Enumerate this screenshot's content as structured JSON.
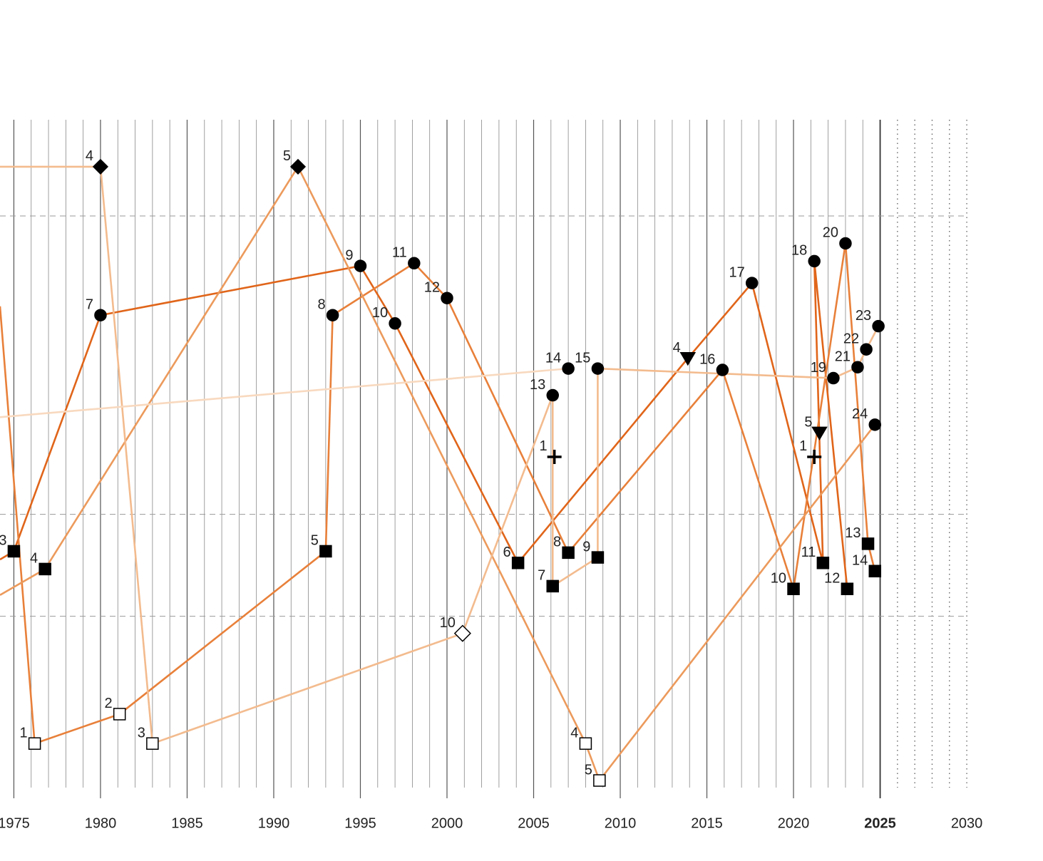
{
  "chart_data": {
    "type": "line",
    "xlim": [
      1974.2,
      2034.4
    ],
    "ylim": [
      0,
      100
    ],
    "xticks": [
      1975,
      1980,
      1985,
      1990,
      1995,
      2000,
      2005,
      2010,
      2015,
      2020,
      2025,
      2030
    ],
    "now": 2025,
    "minor_step": 1,
    "hlines": [
      85.1,
      41.5,
      26.6
    ],
    "series": [
      {
        "color": "#e0651a",
        "x": [
          1974.2,
          1975.0,
          1980.0,
          1995.0,
          1997.0,
          2004.1,
          2013.9,
          2017.6,
          2021.7,
          2021.2,
          2023.1
        ],
        "values": [
          34.9,
          36.1,
          70.6,
          77.8,
          69.4,
          34.4,
          64.3,
          75.3,
          34.4,
          78.5,
          30.6
        ],
        "markers": [
          null,
          "square",
          "circle",
          "circle",
          "circle",
          "square",
          "triangle",
          "circle",
          "square",
          "circle",
          "square"
        ],
        "point_labels": [
          null,
          3,
          7,
          9,
          10,
          6,
          4,
          17,
          11,
          18,
          12
        ]
      },
      {
        "color": "#e8803a",
        "x": [
          1974.2,
          1976.2,
          1981.1,
          1993.0,
          1993.4,
          1998.1,
          2000.0,
          2007.0,
          2015.9,
          2020.0,
          2023.0,
          2024.3,
          2024.7
        ],
        "values": [
          71.9,
          8.0,
          12.3,
          36.1,
          70.6,
          78.2,
          73.1,
          35.9,
          62.6,
          30.6,
          81.1,
          37.2,
          33.2
        ],
        "markers": [
          null,
          "open-square",
          "open-square",
          "square",
          "circle",
          "circle",
          "circle",
          "square",
          "circle",
          "square",
          "circle",
          "square",
          "square"
        ],
        "point_labels": [
          null,
          1,
          2,
          5,
          8,
          11,
          12,
          8,
          16,
          10,
          20,
          13,
          14
        ]
      },
      {
        "color": "#ec9a5c",
        "x": [
          1974.2,
          1976.8,
          1991.4,
          2008.0,
          2008.8,
          2024.7
        ],
        "values": [
          29.7,
          33.5,
          92.3,
          8.0,
          2.6,
          54.6
        ],
        "markers": [
          null,
          "square",
          "diamond",
          "open-square",
          "open-square",
          "circle"
        ],
        "point_labels": [
          null,
          4,
          5,
          4,
          5,
          24
        ]
      },
      {
        "color": "#f3bb8e",
        "x": [
          1974.2,
          1980.0,
          1983.0,
          2000.9,
          2006.1,
          2006.1,
          2008.7,
          2008.7,
          2022.3,
          2023.7,
          2024.2,
          2024.9
        ],
        "values": [
          92.3,
          92.3,
          8.0,
          24.1,
          58.9,
          31.0,
          35.2,
          62.8,
          61.4,
          63.0,
          65.6,
          69.0
        ],
        "markers": [
          null,
          "diamond",
          "open-square",
          "open-diamond",
          "circle",
          "square",
          "square",
          "circle",
          "circle",
          "circle",
          "circle",
          "circle"
        ],
        "point_labels": [
          null,
          4,
          3,
          10,
          13,
          7,
          9,
          15,
          19,
          21,
          22,
          23
        ]
      },
      {
        "color": "#f8d9bf",
        "x": [
          1974.2,
          2007.0
        ],
        "values": [
          55.7,
          62.8
        ],
        "markers": [
          null,
          "circle"
        ],
        "point_labels": [
          null,
          14
        ]
      },
      {
        "color": "#000000",
        "line": false,
        "x": [
          2006.2,
          2021.2,
          2021.5
        ],
        "values": [
          49.9,
          49.9,
          53.4
        ],
        "markers": [
          "cross",
          "cross",
          "triangle"
        ],
        "point_labels": [
          1,
          1,
          5
        ]
      }
    ]
  }
}
